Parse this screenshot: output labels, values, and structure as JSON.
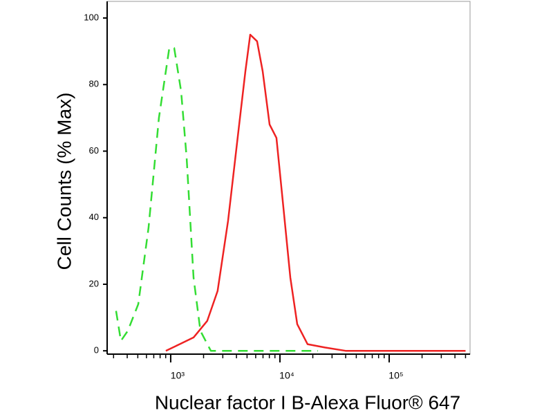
{
  "chart_data": {
    "type": "line",
    "xlabel": "Nuclear factor I B-Alexa Fluor® 647",
    "ylabel": "Cell Counts (% Max)",
    "xscale": "log",
    "xlim": [
      262,
      550000
    ],
    "ylim": [
      -1,
      105
    ],
    "xticks": [
      {
        "value": 1000,
        "label": "10³"
      },
      {
        "value": 10000,
        "label": "10⁴"
      },
      {
        "value": 100000,
        "label": "10⁵"
      }
    ],
    "x_minor_ticks": [
      300,
      400,
      500,
      600,
      700,
      800,
      900,
      2000,
      3000,
      4000,
      5000,
      6000,
      7000,
      8000,
      9000,
      20000,
      30000,
      40000,
      50000,
      60000,
      70000,
      80000,
      90000,
      200000,
      300000,
      400000,
      500000
    ],
    "yticks": [
      0,
      20,
      40,
      60,
      80,
      100
    ],
    "series": [
      {
        "color": "#33dd33",
        "dash": "dashed",
        "x": [
          316,
          350,
          405,
          505,
          627,
          780,
          971,
          1076,
          1245,
          1400,
          1620,
          1870,
          2330,
          22300
        ],
        "values": [
          12,
          3,
          6,
          14,
          37,
          70,
          91,
          91,
          78,
          58,
          22,
          6,
          0,
          0
        ]
      },
      {
        "color": "#ee2222",
        "dash": "solid",
        "x": [
          903,
          1208,
          1620,
          2160,
          2690,
          3350,
          4170,
          4830,
          5350,
          6180,
          6950,
          8040,
          9290,
          10760,
          12450,
          14400,
          17900,
          25800,
          39900,
          500000
        ],
        "values": [
          0,
          2,
          4,
          9,
          18,
          39,
          66,
          84,
          95,
          93,
          84,
          68,
          64,
          43,
          22,
          8,
          2,
          1,
          0,
          0
        ]
      }
    ]
  }
}
